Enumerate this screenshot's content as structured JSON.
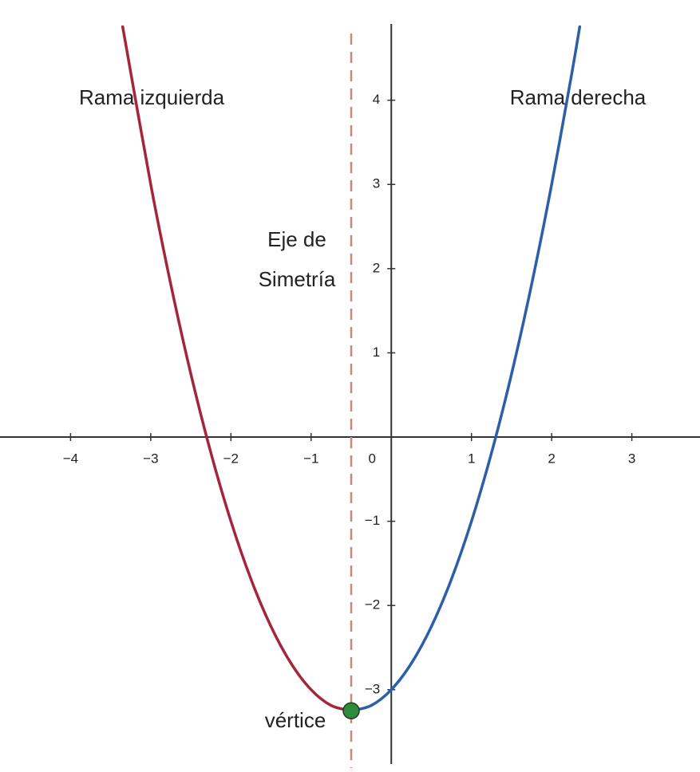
{
  "chart_data": {
    "type": "line",
    "xlim": [
      -4.88,
      3.85
    ],
    "ylim": [
      -3.93,
      5.19
    ],
    "xticks": [
      {
        "value": -4,
        "label": "−4"
      },
      {
        "value": -3,
        "label": "−3"
      },
      {
        "value": -2,
        "label": "−2"
      },
      {
        "value": -1,
        "label": "−1"
      },
      0,
      1,
      2,
      3
    ],
    "yticks": [
      {
        "value": -3,
        "label": "−3"
      },
      {
        "value": -2,
        "label": "−2"
      },
      {
        "value": -1,
        "label": "−1"
      },
      1,
      2,
      3,
      4
    ],
    "series": [
      {
        "color": "#a3263a",
        "x": [
          -3.35,
          -3,
          -2.75,
          -2.5,
          -2.25,
          -2,
          -1.75,
          -1.5,
          -1.25,
          -1,
          -0.75,
          -0.5
        ],
        "values": [
          4.8725,
          3,
          1.8125,
          0.75,
          -0.1875,
          -1,
          -1.6875,
          -2.25,
          -2.6875,
          -3,
          -3.1875,
          -3.25
        ]
      },
      {
        "color": "#2c5fa8",
        "x": [
          -0.5,
          -0.25,
          0,
          0.25,
          0.5,
          0.75,
          1,
          1.25,
          1.5,
          1.75,
          2,
          2.25,
          2.35
        ],
        "values": [
          -3.25,
          -3.1875,
          -3,
          -2.6875,
          -2.25,
          -1.6875,
          -1,
          -0.1875,
          0.75,
          1.8125,
          3,
          4.3125,
          4.8725
        ]
      }
    ],
    "symmetry_axis": {
      "x": -0.5,
      "color": "#c98a78"
    },
    "vertex": {
      "x": -0.5,
      "y": -3.25,
      "color": "#2f8a3e"
    },
    "annotations": [
      "Rama izquierda",
      "Rama derecha",
      "Eje de",
      "Simetría",
      "vértice"
    ]
  }
}
